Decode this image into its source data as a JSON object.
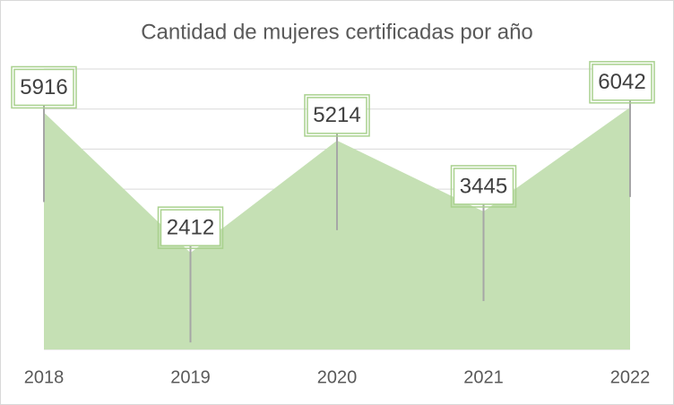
{
  "chart_data": {
    "type": "area",
    "title": "Cantidad de mujeres certificadas por año",
    "categories": [
      "2018",
      "2019",
      "2020",
      "2021",
      "2022"
    ],
    "values": [
      5916,
      2412,
      5214,
      3445,
      6042
    ],
    "color": "#c5e0b4",
    "ylim": [
      0,
      7000
    ],
    "yticks": [
      0,
      1000,
      2000,
      3000,
      4000,
      5000,
      6000,
      7000
    ],
    "grid": true
  }
}
